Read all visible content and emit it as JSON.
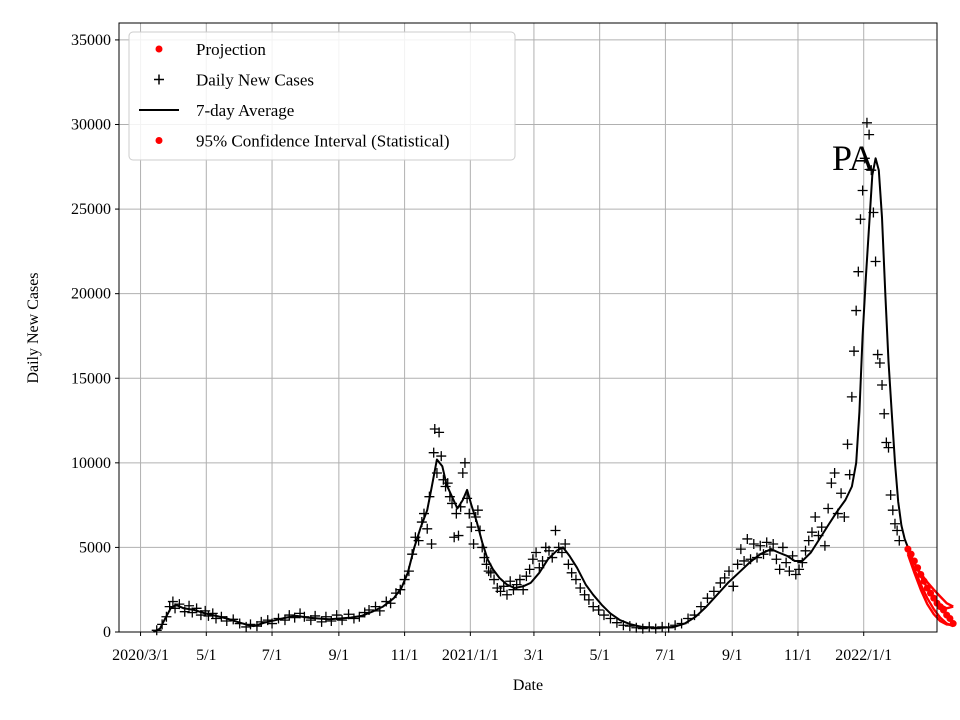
{
  "chart_data": {
    "type": "line",
    "title": "",
    "annotation": "PA",
    "xlabel": "Date",
    "ylabel": "Daily New Cases",
    "ylim": [
      0,
      36000
    ],
    "xlim_days": [
      -20,
      739
    ],
    "yticks": [
      0,
      5000,
      10000,
      15000,
      20000,
      25000,
      30000,
      35000
    ],
    "xticks": [
      {
        "day": 0,
        "label": "2020/3/1"
      },
      {
        "day": 61,
        "label": "5/1"
      },
      {
        "day": 122,
        "label": "7/1"
      },
      {
        "day": 184,
        "label": "9/1"
      },
      {
        "day": 245,
        "label": "11/1"
      },
      {
        "day": 306,
        "label": "2021/1/1"
      },
      {
        "day": 365,
        "label": "3/1"
      },
      {
        "day": 426,
        "label": "5/1"
      },
      {
        "day": 487,
        "label": "7/1"
      },
      {
        "day": 549,
        "label": "9/1"
      },
      {
        "day": 610,
        "label": "11/1"
      },
      {
        "day": 671,
        "label": "2022/1/1"
      }
    ],
    "legend": {
      "position": "top-left",
      "entries": [
        {
          "label": "Projection",
          "marker": "dot",
          "color": "#ff0000"
        },
        {
          "label": "Daily New Cases",
          "marker": "plus",
          "color": "#000000"
        },
        {
          "label": "7-day Average",
          "marker": "line",
          "color": "#000000"
        },
        {
          "label": "95% Confidence Interval (Statistical)",
          "marker": "dot",
          "color": "#ff0000"
        }
      ]
    },
    "series": [
      {
        "name": "7-day Average",
        "color": "#000000",
        "points": [
          [
            12,
            0
          ],
          [
            18,
            200
          ],
          [
            22,
            700
          ],
          [
            28,
            1400
          ],
          [
            33,
            1600
          ],
          [
            40,
            1400
          ],
          [
            50,
            1300
          ],
          [
            60,
            1100
          ],
          [
            70,
            950
          ],
          [
            80,
            800
          ],
          [
            90,
            600
          ],
          [
            100,
            400
          ],
          [
            105,
            350
          ],
          [
            115,
            550
          ],
          [
            125,
            700
          ],
          [
            135,
            850
          ],
          [
            145,
            950
          ],
          [
            155,
            850
          ],
          [
            165,
            800
          ],
          [
            175,
            750
          ],
          [
            185,
            800
          ],
          [
            195,
            850
          ],
          [
            205,
            950
          ],
          [
            215,
            1200
          ],
          [
            225,
            1500
          ],
          [
            235,
            2000
          ],
          [
            242,
            2600
          ],
          [
            248,
            3500
          ],
          [
            254,
            5000
          ],
          [
            260,
            6200
          ],
          [
            266,
            7200
          ],
          [
            270,
            8500
          ],
          [
            275,
            10200
          ],
          [
            280,
            9800
          ],
          [
            284,
            8700
          ],
          [
            289,
            8000
          ],
          [
            294,
            7300
          ],
          [
            299,
            7800
          ],
          [
            303,
            8400
          ],
          [
            307,
            7500
          ],
          [
            312,
            6500
          ],
          [
            317,
            5300
          ],
          [
            322,
            4300
          ],
          [
            327,
            3700
          ],
          [
            333,
            3200
          ],
          [
            340,
            2800
          ],
          [
            347,
            2600
          ],
          [
            355,
            2700
          ],
          [
            362,
            2900
          ],
          [
            370,
            3500
          ],
          [
            378,
            4300
          ],
          [
            386,
            4800
          ],
          [
            392,
            5000
          ],
          [
            398,
            4500
          ],
          [
            405,
            3800
          ],
          [
            413,
            2800
          ],
          [
            420,
            2200
          ],
          [
            428,
            1600
          ],
          [
            436,
            1100
          ],
          [
            445,
            700
          ],
          [
            455,
            450
          ],
          [
            465,
            300
          ],
          [
            475,
            250
          ],
          [
            485,
            250
          ],
          [
            495,
            300
          ],
          [
            505,
            500
          ],
          [
            515,
            900
          ],
          [
            525,
            1500
          ],
          [
            535,
            2200
          ],
          [
            545,
            2900
          ],
          [
            555,
            3500
          ],
          [
            565,
            4100
          ],
          [
            575,
            4600
          ],
          [
            585,
            4900
          ],
          [
            592,
            4700
          ],
          [
            600,
            4500
          ],
          [
            607,
            4200
          ],
          [
            614,
            4200
          ],
          [
            622,
            4700
          ],
          [
            630,
            5500
          ],
          [
            638,
            6300
          ],
          [
            646,
            7100
          ],
          [
            654,
            7800
          ],
          [
            660,
            8600
          ],
          [
            664,
            10000
          ],
          [
            667,
            13000
          ],
          [
            670,
            17500
          ],
          [
            673,
            21000
          ],
          [
            676,
            24000
          ],
          [
            679,
            27000
          ],
          [
            682,
            28000
          ],
          [
            685,
            27300
          ],
          [
            688,
            24500
          ],
          [
            691,
            20000
          ],
          [
            694,
            16000
          ],
          [
            697,
            13000
          ],
          [
            700,
            10000
          ],
          [
            703,
            7700
          ],
          [
            706,
            6300
          ],
          [
            709,
            5500
          ],
          [
            712,
            5000
          ]
        ]
      },
      {
        "name": "Projection",
        "color": "#ff0000",
        "points": [
          [
            712,
            4900
          ],
          [
            718,
            4100
          ],
          [
            724,
            3300
          ],
          [
            730,
            2600
          ],
          [
            736,
            2050
          ],
          [
            742,
            1600
          ],
          [
            748,
            1400
          ],
          [
            754,
            1500
          ]
        ]
      },
      {
        "name": "95% Confidence Interval upper",
        "color": "#ff0000",
        "points": [
          [
            712,
            4800
          ],
          [
            718,
            4050
          ],
          [
            724,
            3450
          ],
          [
            730,
            2950
          ],
          [
            736,
            2500
          ],
          [
            742,
            2100
          ],
          [
            748,
            1700
          ],
          [
            754,
            1500
          ]
        ]
      },
      {
        "name": "95% Confidence Interval lower",
        "color": "#ff0000",
        "points": [
          [
            712,
            4700
          ],
          [
            718,
            3700
          ],
          [
            724,
            2800
          ],
          [
            730,
            2000
          ],
          [
            736,
            1350
          ],
          [
            742,
            850
          ],
          [
            748,
            500
          ],
          [
            754,
            350
          ]
        ]
      },
      {
        "name": "95% Confidence Interval lower 2",
        "color": "#ff0000",
        "points": [
          [
            712,
            4600
          ],
          [
            718,
            3500
          ],
          [
            724,
            2500
          ],
          [
            730,
            1650
          ],
          [
            736,
            1050
          ],
          [
            742,
            650
          ],
          [
            748,
            450
          ],
          [
            754,
            420
          ]
        ]
      }
    ],
    "daily_points": [
      [
        15,
        100
      ],
      [
        20,
        450
      ],
      [
        24,
        900
      ],
      [
        27,
        1500
      ],
      [
        30,
        1800
      ],
      [
        32,
        1400
      ],
      [
        36,
        1650
      ],
      [
        41,
        1200
      ],
      [
        45,
        1550
      ],
      [
        48,
        1150
      ],
      [
        52,
        1400
      ],
      [
        56,
        1000
      ],
      [
        60,
        1250
      ],
      [
        63,
        950
      ],
      [
        67,
        1100
      ],
      [
        70,
        800
      ],
      [
        75,
        900
      ],
      [
        80,
        650
      ],
      [
        86,
        750
      ],
      [
        92,
        500
      ],
      [
        98,
        300
      ],
      [
        102,
        450
      ],
      [
        108,
        350
      ],
      [
        112,
        600
      ],
      [
        118,
        700
      ],
      [
        122,
        500
      ],
      [
        128,
        800
      ],
      [
        134,
        700
      ],
      [
        138,
        1000
      ],
      [
        143,
        850
      ],
      [
        148,
        1100
      ],
      [
        152,
        900
      ],
      [
        158,
        700
      ],
      [
        162,
        950
      ],
      [
        168,
        600
      ],
      [
        172,
        900
      ],
      [
        177,
        650
      ],
      [
        182,
        1000
      ],
      [
        187,
        700
      ],
      [
        193,
        1050
      ],
      [
        198,
        800
      ],
      [
        203,
        900
      ],
      [
        208,
        1150
      ],
      [
        212,
        1300
      ],
      [
        218,
        1500
      ],
      [
        222,
        1250
      ],
      [
        228,
        1800
      ],
      [
        232,
        1700
      ],
      [
        237,
        2300
      ],
      [
        241,
        2500
      ],
      [
        245,
        3100
      ],
      [
        249,
        3600
      ],
      [
        252,
        4600
      ],
      [
        255,
        5600
      ],
      [
        258,
        5400
      ],
      [
        261,
        6500
      ],
      [
        263,
        7000
      ],
      [
        266,
        6100
      ],
      [
        268,
        8000
      ],
      [
        270,
        5200
      ],
      [
        272,
        10600
      ],
      [
        273,
        12000
      ],
      [
        275,
        9400
      ],
      [
        277,
        11800
      ],
      [
        279,
        10400
      ],
      [
        281,
        9000
      ],
      [
        283,
        8600
      ],
      [
        285,
        8800
      ],
      [
        287,
        8000
      ],
      [
        289,
        7600
      ],
      [
        291,
        5600
      ],
      [
        293,
        7000
      ],
      [
        295,
        5700
      ],
      [
        297,
        7400
      ],
      [
        299,
        9400
      ],
      [
        301,
        10000
      ],
      [
        303,
        7900
      ],
      [
        305,
        7000
      ],
      [
        307,
        6200
      ],
      [
        309,
        5200
      ],
      [
        311,
        6800
      ],
      [
        313,
        7200
      ],
      [
        315,
        6000
      ],
      [
        317,
        5000
      ],
      [
        319,
        4400
      ],
      [
        321,
        4000
      ],
      [
        323,
        3600
      ],
      [
        325,
        3500
      ],
      [
        328,
        3100
      ],
      [
        331,
        2600
      ],
      [
        334,
        2400
      ],
      [
        337,
        2700
      ],
      [
        340,
        2200
      ],
      [
        343,
        3000
      ],
      [
        346,
        2500
      ],
      [
        349,
        2800
      ],
      [
        352,
        3100
      ],
      [
        355,
        2500
      ],
      [
        358,
        3300
      ],
      [
        361,
        3700
      ],
      [
        364,
        4300
      ],
      [
        367,
        4700
      ],
      [
        370,
        3800
      ],
      [
        373,
        4200
      ],
      [
        376,
        5000
      ],
      [
        379,
        4800
      ],
      [
        382,
        4400
      ],
      [
        385,
        6000
      ],
      [
        388,
        5000
      ],
      [
        391,
        4700
      ],
      [
        394,
        5200
      ],
      [
        397,
        4000
      ],
      [
        400,
        3500
      ],
      [
        404,
        3100
      ],
      [
        408,
        2600
      ],
      [
        412,
        2200
      ],
      [
        416,
        1900
      ],
      [
        420,
        1500
      ],
      [
        425,
        1300
      ],
      [
        430,
        1000
      ],
      [
        436,
        800
      ],
      [
        442,
        550
      ],
      [
        448,
        400
      ],
      [
        454,
        350
      ],
      [
        460,
        250
      ],
      [
        466,
        200
      ],
      [
        472,
        300
      ],
      [
        478,
        200
      ],
      [
        484,
        300
      ],
      [
        490,
        250
      ],
      [
        496,
        400
      ],
      [
        502,
        500
      ],
      [
        508,
        800
      ],
      [
        514,
        1000
      ],
      [
        520,
        1500
      ],
      [
        526,
        2000
      ],
      [
        532,
        2400
      ],
      [
        538,
        2900
      ],
      [
        542,
        3200
      ],
      [
        546,
        3600
      ],
      [
        550,
        2700
      ],
      [
        554,
        4000
      ],
      [
        557,
        4900
      ],
      [
        560,
        4200
      ],
      [
        563,
        5500
      ],
      [
        566,
        4300
      ],
      [
        569,
        5200
      ],
      [
        572,
        4400
      ],
      [
        575,
        5100
      ],
      [
        578,
        4600
      ],
      [
        581,
        5300
      ],
      [
        584,
        4800
      ],
      [
        587,
        5200
      ],
      [
        590,
        4300
      ],
      [
        593,
        3700
      ],
      [
        596,
        5000
      ],
      [
        599,
        4100
      ],
      [
        602,
        3600
      ],
      [
        605,
        4500
      ],
      [
        608,
        3400
      ],
      [
        611,
        3700
      ],
      [
        614,
        4100
      ],
      [
        617,
        4800
      ],
      [
        620,
        5400
      ],
      [
        623,
        5900
      ],
      [
        626,
        6800
      ],
      [
        629,
        5700
      ],
      [
        632,
        6200
      ],
      [
        635,
        5100
      ],
      [
        638,
        7300
      ],
      [
        641,
        8800
      ],
      [
        644,
        9400
      ],
      [
        647,
        7000
      ],
      [
        650,
        8200
      ],
      [
        653,
        6800
      ],
      [
        656,
        11100
      ],
      [
        658,
        9300
      ],
      [
        660,
        13900
      ],
      [
        662,
        16600
      ],
      [
        664,
        19000
      ],
      [
        666,
        21300
      ],
      [
        668,
        24400
      ],
      [
        670,
        26100
      ],
      [
        672,
        28000
      ],
      [
        674,
        30100
      ],
      [
        676,
        29400
      ],
      [
        678,
        27300
      ],
      [
        680,
        24800
      ],
      [
        682,
        21900
      ],
      [
        684,
        16400
      ],
      [
        686,
        15900
      ],
      [
        688,
        14600
      ],
      [
        690,
        12900
      ],
      [
        692,
        11200
      ],
      [
        694,
        10900
      ],
      [
        696,
        8100
      ],
      [
        698,
        7200
      ],
      [
        700,
        6400
      ],
      [
        702,
        6000
      ],
      [
        704,
        5400
      ]
    ],
    "projection_points": [
      [
        712,
        4900
      ],
      [
        715,
        4600
      ],
      [
        718,
        4200
      ],
      [
        721,
        3800
      ],
      [
        724,
        3400
      ],
      [
        727,
        3000
      ],
      [
        730,
        2600
      ],
      [
        733,
        2300
      ],
      [
        736,
        2000
      ],
      [
        739,
        1700
      ],
      [
        742,
        1500
      ],
      [
        745,
        1300
      ],
      [
        748,
        1000
      ],
      [
        751,
        800
      ],
      [
        754,
        500
      ]
    ]
  }
}
